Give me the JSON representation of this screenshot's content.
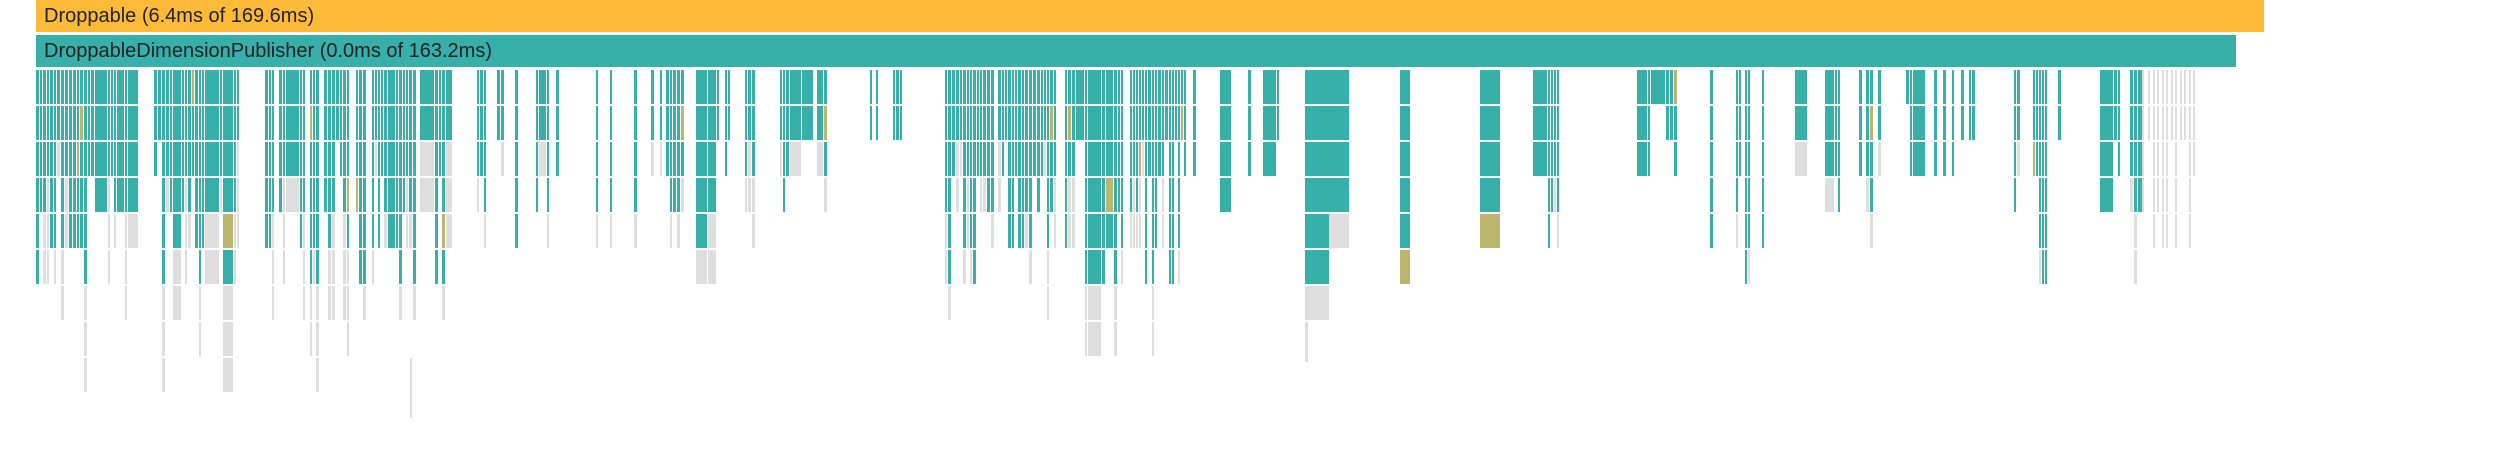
{
  "flamegraph": {
    "frames": [
      {
        "label": "Droppable (6.4ms of 169.6ms)",
        "color": "#ffbb38"
      },
      {
        "label": "DroppableDimensionPublisher (0.0ms of 163.2ms)",
        "color": "#37b0a9"
      }
    ],
    "colors": {
      "teal": "#37b0a9",
      "olive": "#bbb66d",
      "gray": "#dedede",
      "background": "#ffffff"
    }
  }
}
